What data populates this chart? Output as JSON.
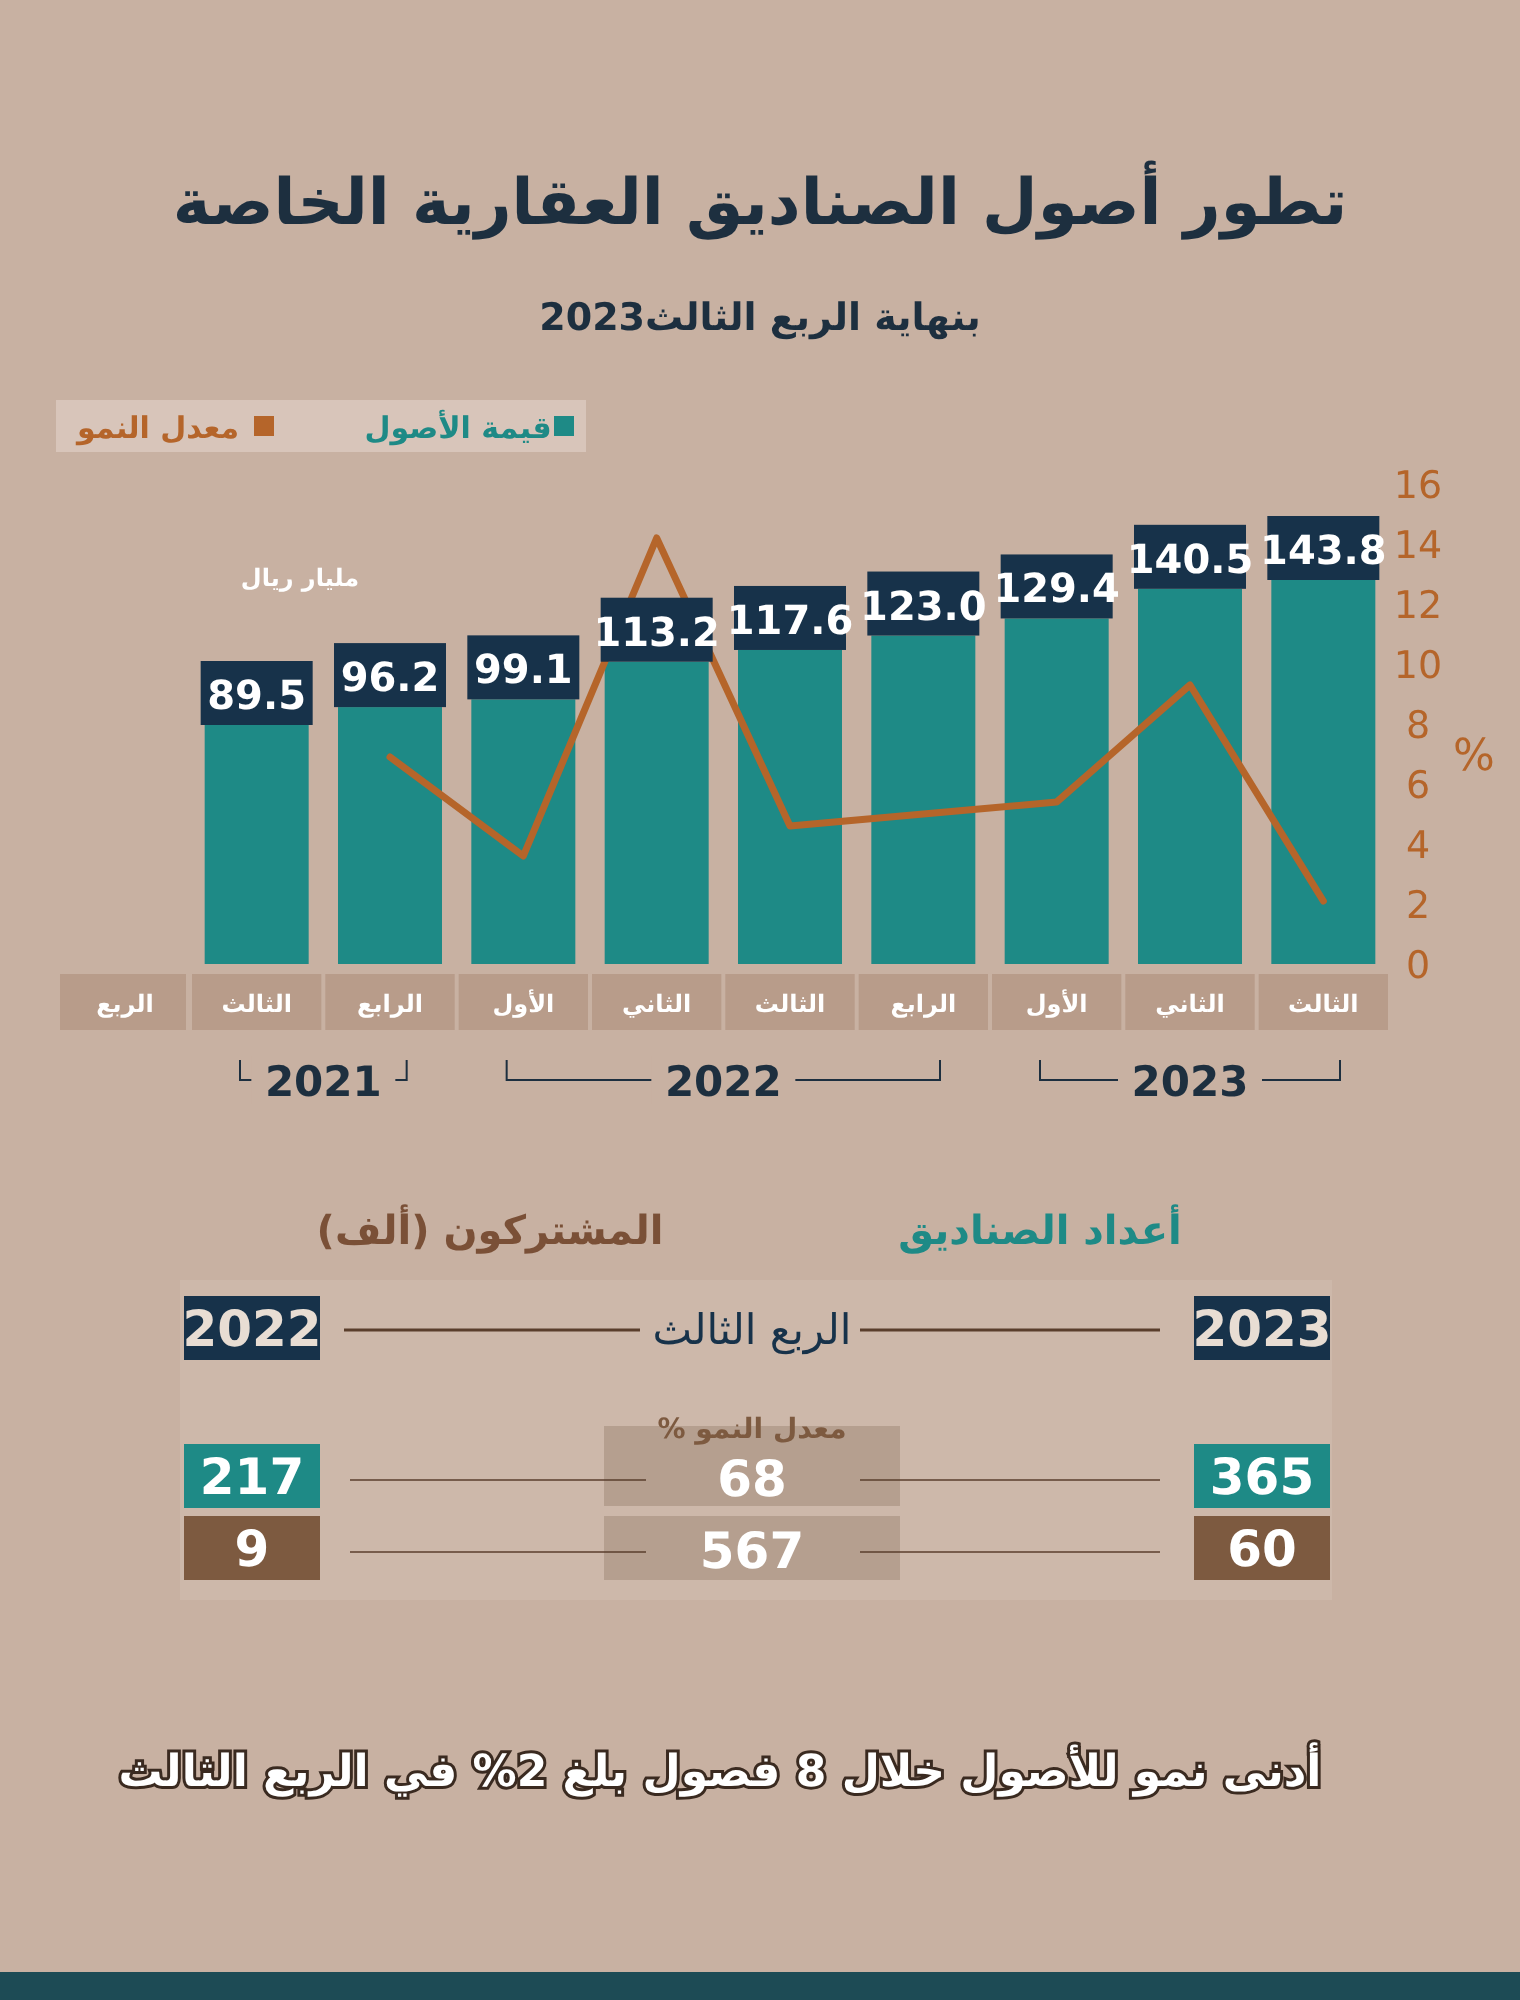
{
  "chart_data": [
    {
      "type": "bar",
      "title": "تطور أصول الصناديق العقارية الخاصة",
      "subtitle": "بنهاية الربع الثالث2023",
      "categories": [
        "الثالث",
        "الرابع",
        "الأول",
        "الثاني",
        "الثالث",
        "الرابع",
        "الأول",
        "الثاني",
        "الثالث"
      ],
      "series": [
        {
          "name": "قيمة الأصول",
          "type": "bar",
          "color": "#1e8a86",
          "values": [
            89.5,
            96.2,
            99.1,
            113.2,
            117.6,
            123.0,
            129.4,
            140.5,
            143.8
          ],
          "value_labels": [
            "89.5",
            "96.2",
            "99.1",
            "113.2",
            "117.6",
            "123.0",
            "129.4",
            "140.5",
            "143.8"
          ]
        },
        {
          "name": "معدل النمو",
          "type": "line",
          "axis": "y2",
          "color": "#b5652a",
          "values": [
            null,
            6.9,
            3.6,
            14.2,
            4.6,
            5.0,
            5.4,
            9.3,
            2.1
          ]
        }
      ],
      "y2lim": [
        0,
        16
      ],
      "y2ticks": [
        0,
        2,
        4,
        6,
        8,
        10,
        12,
        14,
        16
      ],
      "y2label": "%",
      "legend": "top left",
      "annotations": [
        "مليار ريال",
        "الربع",
        "2021",
        "2022",
        "2023"
      ]
    },
    {
      "type": "other",
      "annotations": [
        "أعداد الصناديق",
        "المشتركون (ألف)",
        "2022",
        "الربع الثالث",
        "2023",
        "معدل النمو %",
        "217",
        "68",
        "365",
        "9",
        "567",
        "60",
        "أدنى نمو للأصول خلال 8 فصول بلغ 2% في الربع الثالث"
      ]
    }
  ]
}
